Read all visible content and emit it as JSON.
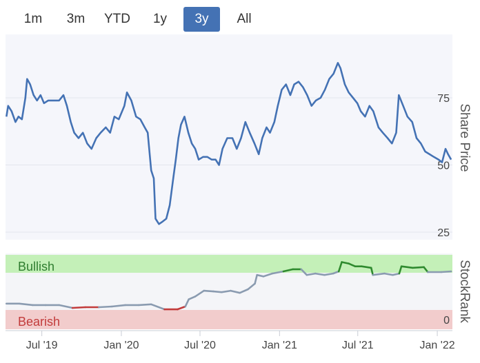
{
  "range_selector": {
    "buttons": [
      "1m",
      "3m",
      "YTD",
      "1y",
      "3y",
      "All"
    ],
    "active": "3y"
  },
  "colors": {
    "price_line": "#4472b4",
    "price_bg": "#f5f6fb",
    "bullish_zone": "#c4f0b8",
    "bearish_zone": "#f2cccc",
    "bullish_line": "#2f8a2f",
    "bearish_line": "#c23b3b",
    "neutral_line": "#8a9bb0",
    "active_button": "#4472b4"
  },
  "chart_data": [
    {
      "type": "line",
      "ylabel": "Share Price",
      "ylim": [
        20,
        95
      ],
      "yticks": [
        25,
        50,
        75
      ],
      "grid": true,
      "series": [
        {
          "values": [
            [
              "2019-04-10",
              68
            ],
            [
              "2019-04-14",
              72
            ],
            [
              "2019-04-22",
              70
            ],
            [
              "2019-05-01",
              66
            ],
            [
              "2019-05-08",
              68
            ],
            [
              "2019-05-16",
              67
            ],
            [
              "2019-05-24",
              75
            ],
            [
              "2019-05-28",
              82
            ],
            [
              "2019-06-04",
              80
            ],
            [
              "2019-06-12",
              76
            ],
            [
              "2019-06-20",
              74
            ],
            [
              "2019-06-28",
              76
            ],
            [
              "2019-07-06",
              73
            ],
            [
              "2019-07-16",
              74
            ],
            [
              "2019-07-26",
              74
            ],
            [
              "2019-08-10",
              74
            ],
            [
              "2019-08-20",
              76
            ],
            [
              "2019-08-28",
              72
            ],
            [
              "2019-09-06",
              66
            ],
            [
              "2019-09-14",
              62
            ],
            [
              "2019-09-24",
              60
            ],
            [
              "2019-10-04",
              62
            ],
            [
              "2019-10-14",
              58
            ],
            [
              "2019-10-24",
              56
            ],
            [
              "2019-11-04",
              60
            ],
            [
              "2019-11-14",
              62
            ],
            [
              "2019-11-26",
              64
            ],
            [
              "2019-12-06",
              62
            ],
            [
              "2019-12-16",
              68
            ],
            [
              "2019-12-26",
              67
            ],
            [
              "2020-01-08",
              72
            ],
            [
              "2020-01-14",
              77
            ],
            [
              "2020-01-24",
              74
            ],
            [
              "2020-02-04",
              68
            ],
            [
              "2020-02-14",
              67
            ],
            [
              "2020-02-24",
              64
            ],
            [
              "2020-03-02",
              62
            ],
            [
              "2020-03-10",
              48
            ],
            [
              "2020-03-16",
              45
            ],
            [
              "2020-03-20",
              30
            ],
            [
              "2020-03-28",
              28
            ],
            [
              "2020-04-06",
              29
            ],
            [
              "2020-04-14",
              30
            ],
            [
              "2020-04-22",
              35
            ],
            [
              "2020-04-30",
              45
            ],
            [
              "2020-05-06",
              52
            ],
            [
              "2020-05-12",
              60
            ],
            [
              "2020-05-18",
              65
            ],
            [
              "2020-05-26",
              68
            ],
            [
              "2020-06-04",
              62
            ],
            [
              "2020-06-12",
              58
            ],
            [
              "2020-06-20",
              56
            ],
            [
              "2020-06-28",
              52
            ],
            [
              "2020-07-08",
              53
            ],
            [
              "2020-07-18",
              53
            ],
            [
              "2020-07-28",
              52
            ],
            [
              "2020-08-06",
              52
            ],
            [
              "2020-08-14",
              50
            ],
            [
              "2020-08-22",
              56
            ],
            [
              "2020-09-02",
              60
            ],
            [
              "2020-09-14",
              60
            ],
            [
              "2020-09-24",
              56
            ],
            [
              "2020-10-04",
              60
            ],
            [
              "2020-10-14",
              66
            ],
            [
              "2020-10-24",
              62
            ],
            [
              "2020-11-04",
              58
            ],
            [
              "2020-11-14",
              54
            ],
            [
              "2020-11-22",
              60
            ],
            [
              "2020-12-02",
              64
            ],
            [
              "2020-12-10",
              62
            ],
            [
              "2020-12-20",
              66
            ],
            [
              "2020-12-28",
              72
            ],
            [
              "2021-01-06",
              78
            ],
            [
              "2021-01-16",
              80
            ],
            [
              "2021-01-26",
              76
            ],
            [
              "2021-02-04",
              80
            ],
            [
              "2021-02-14",
              81
            ],
            [
              "2021-02-24",
              79
            ],
            [
              "2021-03-06",
              76
            ],
            [
              "2021-03-16",
              72
            ],
            [
              "2021-03-26",
              74
            ],
            [
              "2021-04-06",
              75
            ],
            [
              "2021-04-16",
              78
            ],
            [
              "2021-04-26",
              82
            ],
            [
              "2021-05-06",
              84
            ],
            [
              "2021-05-16",
              88
            ],
            [
              "2021-05-22",
              86
            ],
            [
              "2021-06-01",
              80
            ],
            [
              "2021-06-10",
              77
            ],
            [
              "2021-06-20",
              75
            ],
            [
              "2021-06-30",
              73
            ],
            [
              "2021-07-08",
              70
            ],
            [
              "2021-07-18",
              68
            ],
            [
              "2021-07-28",
              72
            ],
            [
              "2021-08-06",
              70
            ],
            [
              "2021-08-18",
              64
            ],
            [
              "2021-08-28",
              62
            ],
            [
              "2021-09-08",
              60
            ],
            [
              "2021-09-18",
              58
            ],
            [
              "2021-09-28",
              62
            ],
            [
              "2021-10-04",
              76
            ],
            [
              "2021-10-14",
              72
            ],
            [
              "2021-10-24",
              68
            ],
            [
              "2021-11-04",
              66
            ],
            [
              "2021-11-14",
              60
            ],
            [
              "2021-11-24",
              58
            ],
            [
              "2021-12-04",
              55
            ],
            [
              "2021-12-14",
              54
            ],
            [
              "2021-12-24",
              53
            ],
            [
              "2022-01-04",
              52
            ],
            [
              "2022-01-12",
              51
            ],
            [
              "2022-01-20",
              56
            ],
            [
              "2022-01-26",
              54
            ],
            [
              "2022-02-02",
              52
            ]
          ]
        }
      ]
    },
    {
      "type": "line",
      "ylabel": "StockRank",
      "ylim": [
        0,
        100
      ],
      "yticks": [
        0
      ],
      "zones": [
        {
          "label": "Bullish",
          "from": 75,
          "to": 100
        },
        {
          "label": "Bearish",
          "from": 0,
          "to": 25
        }
      ],
      "x_ticks": [
        "Jul '19",
        "Jan '20",
        "Jul '20",
        "Jan '21",
        "Jul '21",
        "Jan '22"
      ],
      "series": [
        {
          "values": [
            [
              "2019-04-10",
              30
            ],
            [
              "2019-05-10",
              30
            ],
            [
              "2019-06-10",
              28
            ],
            [
              "2019-07-10",
              28
            ],
            [
              "2019-08-10",
              28
            ],
            [
              "2019-09-10",
              24
            ],
            [
              "2019-10-10",
              25
            ],
            [
              "2019-11-10",
              25
            ],
            [
              "2019-12-10",
              26
            ],
            [
              "2020-01-10",
              28
            ],
            [
              "2020-02-10",
              28
            ],
            [
              "2020-03-10",
              29
            ],
            [
              "2020-04-10",
              22
            ],
            [
              "2020-05-10",
              22
            ],
            [
              "2020-05-28",
              26
            ],
            [
              "2020-06-05",
              36
            ],
            [
              "2020-06-20",
              40
            ],
            [
              "2020-07-10",
              48
            ],
            [
              "2020-08-01",
              47
            ],
            [
              "2020-08-20",
              46
            ],
            [
              "2020-09-10",
              48
            ],
            [
              "2020-10-01",
              45
            ],
            [
              "2020-10-20",
              50
            ],
            [
              "2020-11-05",
              58
            ],
            [
              "2020-11-10",
              70
            ],
            [
              "2020-11-25",
              68
            ],
            [
              "2020-12-15",
              72
            ],
            [
              "2021-01-10",
              75
            ],
            [
              "2021-02-01",
              78
            ],
            [
              "2021-02-20",
              78
            ],
            [
              "2021-03-05",
              70
            ],
            [
              "2021-03-25",
              72
            ],
            [
              "2021-04-15",
              70
            ],
            [
              "2021-05-05",
              72
            ],
            [
              "2021-05-18",
              75
            ],
            [
              "2021-05-25",
              88
            ],
            [
              "2021-06-10",
              86
            ],
            [
              "2021-06-25",
              82
            ],
            [
              "2021-07-10",
              82
            ],
            [
              "2021-08-01",
              80
            ],
            [
              "2021-08-05",
              70
            ],
            [
              "2021-09-01",
              72
            ],
            [
              "2021-09-20",
              70
            ],
            [
              "2021-10-05",
              72
            ],
            [
              "2021-10-10",
              82
            ],
            [
              "2021-11-05",
              80
            ],
            [
              "2021-12-01",
              81
            ],
            [
              "2021-12-10",
              74
            ],
            [
              "2022-01-10",
              74
            ],
            [
              "2022-02-02",
              75
            ]
          ]
        }
      ]
    }
  ]
}
